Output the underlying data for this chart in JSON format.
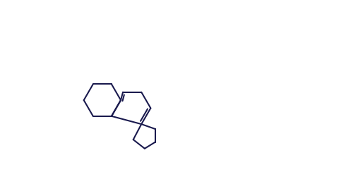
{
  "bg": "#ffffff",
  "line_color": "#1a1a4e",
  "lw": 1.5,
  "figw": 4.9,
  "figh": 2.54,
  "dpi": 100
}
